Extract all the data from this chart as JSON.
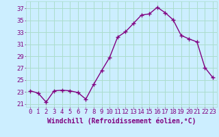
{
  "x": [
    0,
    1,
    2,
    3,
    4,
    5,
    6,
    7,
    8,
    9,
    10,
    11,
    12,
    13,
    14,
    15,
    16,
    17,
    18,
    19,
    20,
    21,
    22,
    23
  ],
  "y": [
    23.2,
    22.8,
    21.3,
    23.2,
    23.3,
    23.2,
    22.9,
    21.8,
    24.3,
    26.6,
    28.8,
    32.2,
    33.1,
    34.5,
    35.9,
    36.1,
    37.2,
    36.3,
    35.1,
    32.5,
    31.9,
    31.4,
    27.1,
    25.4
  ],
  "line_color": "#800080",
  "marker": "P",
  "marker_size": 2.5,
  "bg_color": "#cceeff",
  "grid_color": "#aaddcc",
  "xlabel": "Windchill (Refroidissement éolien,°C)",
  "xlim": [
    -0.5,
    23.5
  ],
  "ylim": [
    20.5,
    38.2
  ],
  "xticks": [
    0,
    1,
    2,
    3,
    4,
    5,
    6,
    7,
    8,
    9,
    10,
    11,
    12,
    13,
    14,
    15,
    16,
    17,
    18,
    19,
    20,
    21,
    22,
    23
  ],
  "yticks": [
    21,
    23,
    25,
    27,
    29,
    31,
    33,
    35,
    37
  ],
  "font_color": "#800080",
  "tick_fontsize": 6.5,
  "xlabel_fontsize": 7,
  "linewidth": 1.0
}
